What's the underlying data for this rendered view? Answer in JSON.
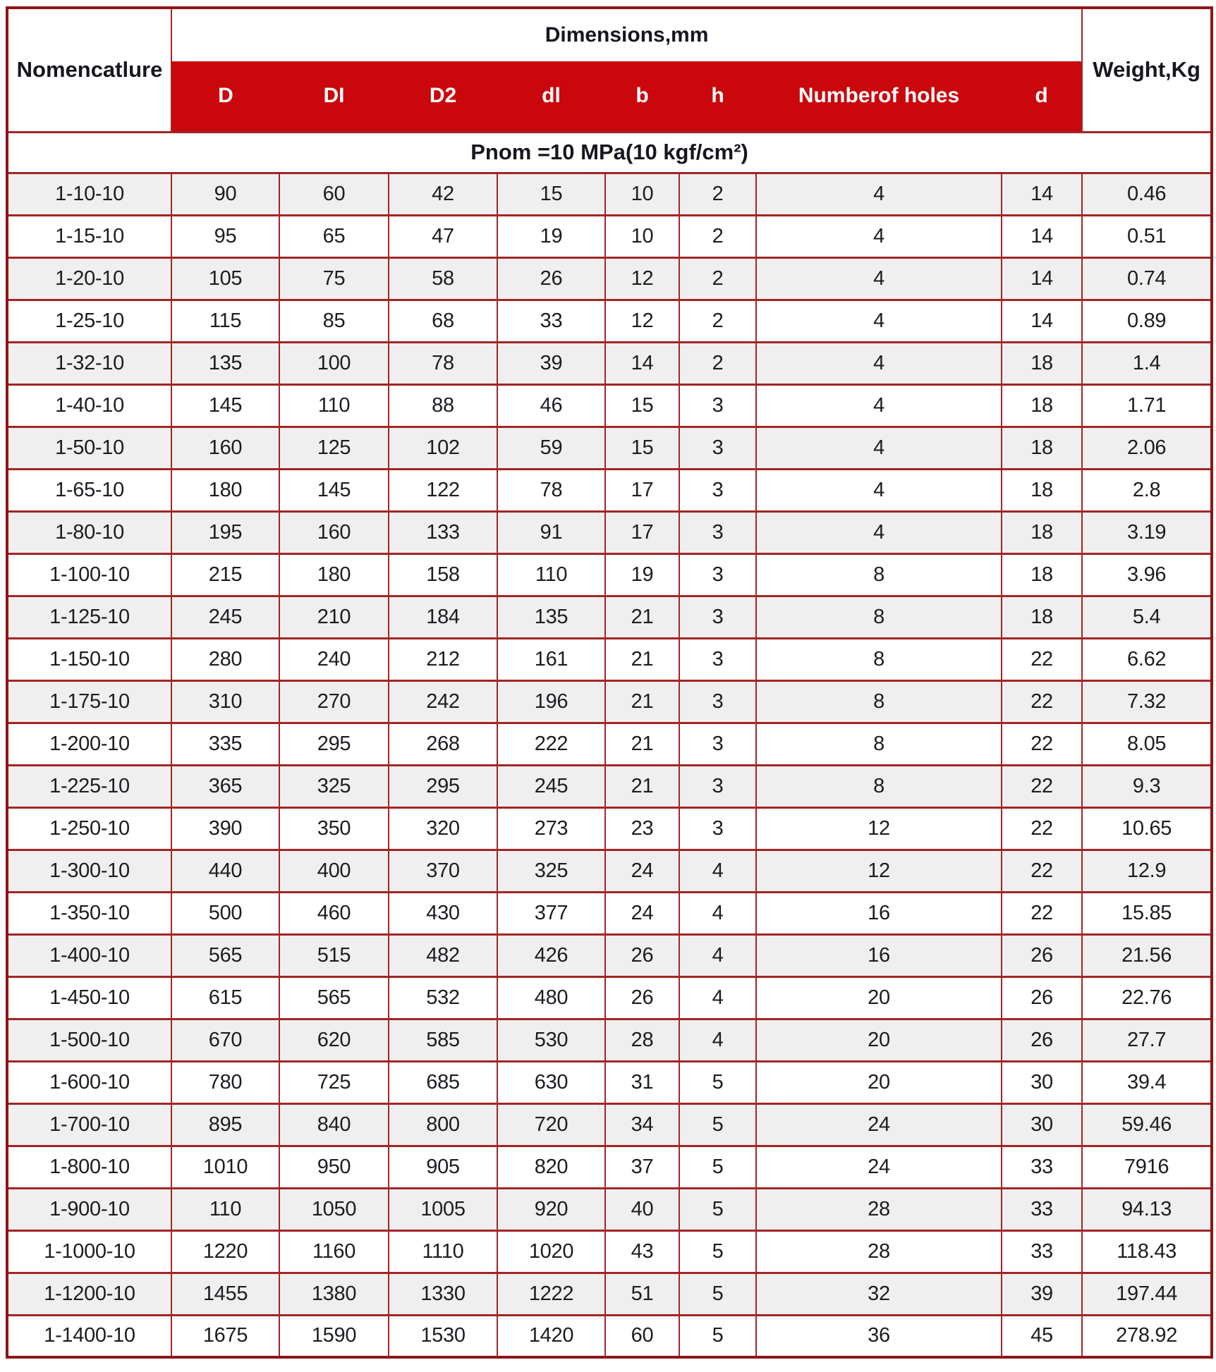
{
  "table": {
    "header": {
      "nomenclature": "Nomencatlure",
      "dimensions_group": "Dimensions,mm",
      "weight": "Weight,Kg",
      "columns": [
        "D",
        "DI",
        "D2",
        "dl",
        "b",
        "h",
        "Numberof holes",
        "d"
      ]
    },
    "section_title": "Pnom =10 MPa(10 kgf/cm²)",
    "rows": [
      [
        "1-10-10",
        "90",
        "60",
        "42",
        "15",
        "10",
        "2",
        "4",
        "14",
        "0.46"
      ],
      [
        "1-15-10",
        "95",
        "65",
        "47",
        "19",
        "10",
        "2",
        "4",
        "14",
        "0.51"
      ],
      [
        "1-20-10",
        "105",
        "75",
        "58",
        "26",
        "12",
        "2",
        "4",
        "14",
        "0.74"
      ],
      [
        "1-25-10",
        "115",
        "85",
        "68",
        "33",
        "12",
        "2",
        "4",
        "14",
        "0.89"
      ],
      [
        "1-32-10",
        "135",
        "100",
        "78",
        "39",
        "14",
        "2",
        "4",
        "18",
        "1.4"
      ],
      [
        "1-40-10",
        "145",
        "110",
        "88",
        "46",
        "15",
        "3",
        "4",
        "18",
        "1.71"
      ],
      [
        "1-50-10",
        "160",
        "125",
        "102",
        "59",
        "15",
        "3",
        "4",
        "18",
        "2.06"
      ],
      [
        "1-65-10",
        "180",
        "145",
        "122",
        "78",
        "17",
        "3",
        "4",
        "18",
        "2.8"
      ],
      [
        "1-80-10",
        "195",
        "160",
        "133",
        "91",
        "17",
        "3",
        "4",
        "18",
        "3.19"
      ],
      [
        "1-100-10",
        "215",
        "180",
        "158",
        "110",
        "19",
        "3",
        "8",
        "18",
        "3.96"
      ],
      [
        "1-125-10",
        "245",
        "210",
        "184",
        "135",
        "21",
        "3",
        "8",
        "18",
        "5.4"
      ],
      [
        "1-150-10",
        "280",
        "240",
        "212",
        "161",
        "21",
        "3",
        "8",
        "22",
        "6.62"
      ],
      [
        "1-175-10",
        "310",
        "270",
        "242",
        "196",
        "21",
        "3",
        "8",
        "22",
        "7.32"
      ],
      [
        "1-200-10",
        "335",
        "295",
        "268",
        "222",
        "21",
        "3",
        "8",
        "22",
        "8.05"
      ],
      [
        "1-225-10",
        "365",
        "325",
        "295",
        "245",
        "21",
        "3",
        "8",
        "22",
        "9.3"
      ],
      [
        "1-250-10",
        "390",
        "350",
        "320",
        "273",
        "23",
        "3",
        "12",
        "22",
        "10.65"
      ],
      [
        "1-300-10",
        "440",
        "400",
        "370",
        "325",
        "24",
        "4",
        "12",
        "22",
        "12.9"
      ],
      [
        "1-350-10",
        "500",
        "460",
        "430",
        "377",
        "24",
        "4",
        "16",
        "22",
        "15.85"
      ],
      [
        "1-400-10",
        "565",
        "515",
        "482",
        "426",
        "26",
        "4",
        "16",
        "26",
        "21.56"
      ],
      [
        "1-450-10",
        "615",
        "565",
        "532",
        "480",
        "26",
        "4",
        "20",
        "26",
        "22.76"
      ],
      [
        "1-500-10",
        "670",
        "620",
        "585",
        "530",
        "28",
        "4",
        "20",
        "26",
        "27.7"
      ],
      [
        "1-600-10",
        "780",
        "725",
        "685",
        "630",
        "31",
        "5",
        "20",
        "30",
        "39.4"
      ],
      [
        "1-700-10",
        "895",
        "840",
        "800",
        "720",
        "34",
        "5",
        "24",
        "30",
        "59.46"
      ],
      [
        "1-800-10",
        "1010",
        "950",
        "905",
        "820",
        "37",
        "5",
        "24",
        "33",
        "7916"
      ],
      [
        "1-900-10",
        "110",
        "1050",
        "1005",
        "920",
        "40",
        "5",
        "28",
        "33",
        "94.13"
      ],
      [
        "1-1000-10",
        "1220",
        "1160",
        "1110",
        "1020",
        "43",
        "5",
        "28",
        "33",
        "118.43"
      ],
      [
        "1-1200-10",
        "1455",
        "1380",
        "1330",
        "1222",
        "51",
        "5",
        "32",
        "39",
        "197.44"
      ],
      [
        "1-1400-10",
        "1675",
        "1590",
        "1530",
        "1420",
        "60",
        "5",
        "36",
        "45",
        "278.92"
      ]
    ]
  },
  "colors": {
    "header_band": "#c9070d",
    "inner_border": "#a32524",
    "outer_border": "#8c1518",
    "alt_row": "#efefef"
  }
}
